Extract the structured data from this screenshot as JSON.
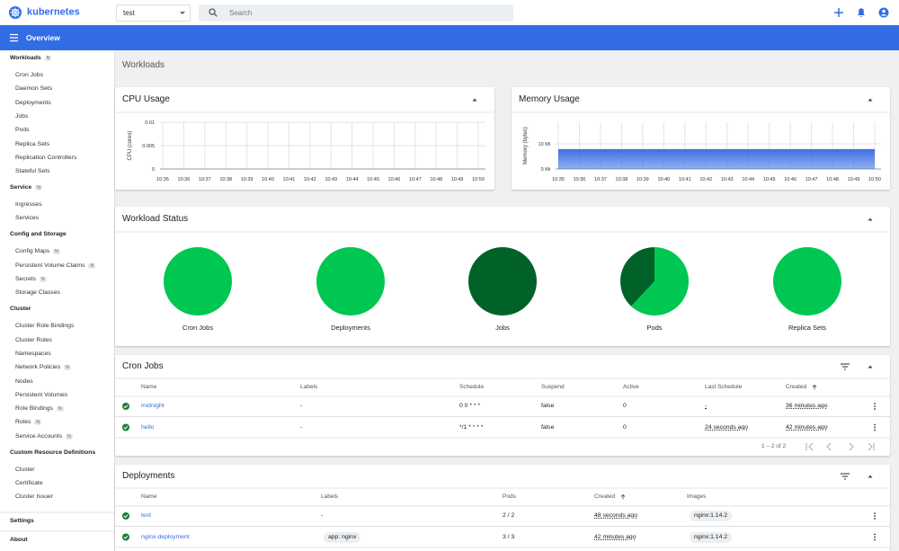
{
  "header": {
    "brand": "kubernetes",
    "namespace": "test",
    "search_placeholder": "Search"
  },
  "toolbar": {
    "title": "Overview"
  },
  "sidebar": {
    "sections": [
      {
        "title": "Workloads",
        "badge": "N",
        "items": [
          {
            "label": "Cron Jobs"
          },
          {
            "label": "Daemon Sets"
          },
          {
            "label": "Deployments"
          },
          {
            "label": "Jobs"
          },
          {
            "label": "Pods"
          },
          {
            "label": "Replica Sets"
          },
          {
            "label": "Replication Controllers"
          },
          {
            "label": "Stateful Sets"
          }
        ]
      },
      {
        "title": "Service",
        "badge": "N",
        "items": [
          {
            "label": "Ingresses"
          },
          {
            "label": "Services"
          }
        ]
      },
      {
        "title": "Config and Storage",
        "items": [
          {
            "label": "Config Maps",
            "badge": "N"
          },
          {
            "label": "Persistent Volume Claims",
            "badge": "N"
          },
          {
            "label": "Secrets",
            "badge": "N"
          },
          {
            "label": "Storage Classes"
          }
        ]
      },
      {
        "title": "Cluster",
        "items": [
          {
            "label": "Cluster Role Bindings"
          },
          {
            "label": "Cluster Roles"
          },
          {
            "label": "Namespaces"
          },
          {
            "label": "Network Policies",
            "badge": "N"
          },
          {
            "label": "Nodes"
          },
          {
            "label": "Persistent Volumes"
          },
          {
            "label": "Role Bindings",
            "badge": "N"
          },
          {
            "label": "Roles",
            "badge": "N"
          },
          {
            "label": "Service Accounts",
            "badge": "N"
          }
        ]
      },
      {
        "title": "Custom Resource Definitions",
        "items": [
          {
            "label": "Cluster"
          },
          {
            "label": "Certificate"
          },
          {
            "label": "Cluster Issuer"
          }
        ]
      }
    ],
    "footer": [
      {
        "label": "Settings"
      },
      {
        "label": "About"
      }
    ]
  },
  "page_title": "Workloads",
  "workload_status": {
    "title": "Workload Status"
  },
  "chart_data": [
    {
      "type": "line",
      "title": "CPU Usage",
      "y_label": "CPU (cores)",
      "x": [
        "10:35",
        "10:36",
        "10:37",
        "10:38",
        "10:39",
        "10:40",
        "10:41",
        "10:42",
        "10:43",
        "10:44",
        "10:45",
        "10:46",
        "10:47",
        "10:48",
        "10:49",
        "10:50"
      ],
      "ylim": [
        0,
        0.01
      ],
      "yticks": [
        0,
        0.005,
        0.01
      ],
      "grid": true
    },
    {
      "type": "area",
      "title": "Memory Usage",
      "y_label": "Memory (bytes)",
      "x": [
        "10:35",
        "10:36",
        "10:37",
        "10:38",
        "10:39",
        "10:40",
        "10:41",
        "10:42",
        "10:43",
        "10:44",
        "10:45",
        "10:46",
        "10:47",
        "10:48",
        "10:49",
        "10:50"
      ],
      "values": [
        7.9,
        7.9,
        7.9,
        7.9,
        7.9,
        7.9,
        7.9,
        7.9,
        7.9,
        7.9,
        7.9,
        7.9,
        7.9,
        7.9,
        7.9,
        7.9
      ],
      "color": "#3d6fe3",
      "ylim": [
        0,
        18.6
      ],
      "yticks": [
        {
          "value": 0,
          "label": "0 Mi"
        },
        {
          "value": 10,
          "label": "10 Mi"
        }
      ],
      "grid": true
    },
    {
      "type": "pie",
      "title": "Cron Jobs",
      "values": [
        100
      ],
      "colors": [
        "#00c752"
      ]
    },
    {
      "type": "pie",
      "title": "Deployments",
      "values": [
        100
      ],
      "colors": [
        "#00c752"
      ]
    },
    {
      "type": "pie",
      "title": "Jobs",
      "values": [
        100
      ],
      "colors": [
        "#006228"
      ]
    },
    {
      "type": "pie",
      "title": "Pods",
      "values": [
        62,
        38
      ],
      "colors": [
        "#00c752",
        "#006228"
      ]
    },
    {
      "type": "pie",
      "title": "Replica Sets",
      "values": [
        100
      ],
      "colors": [
        "#00c752"
      ]
    }
  ],
  "cron_jobs": {
    "title": "Cron Jobs",
    "columns": [
      "Name",
      "Labels",
      "Schedule",
      "Suspend",
      "Active",
      "Last Schedule",
      "Created"
    ],
    "rows": [
      [
        "midnight",
        "-",
        "0 0 * * *",
        "false",
        "0",
        "-",
        "36 minutes ago"
      ],
      [
        "hello",
        "-",
        "*/1 * * * *",
        "false",
        "0",
        "24 seconds ago",
        "42 minutes ago"
      ]
    ],
    "pagination": "1 – 2 of 2"
  },
  "deployments": {
    "title": "Deployments",
    "columns": [
      "Name",
      "Labels",
      "Pods",
      "Created",
      "Images"
    ],
    "rows": [
      [
        "test",
        "-",
        "2 / 2",
        "48 seconds ago",
        "nginx:1.14.2"
      ],
      [
        "nginx-deployment",
        "app: nginx",
        "3 / 3",
        "42 minutes ago",
        "nginx:1.14.2"
      ]
    ]
  }
}
